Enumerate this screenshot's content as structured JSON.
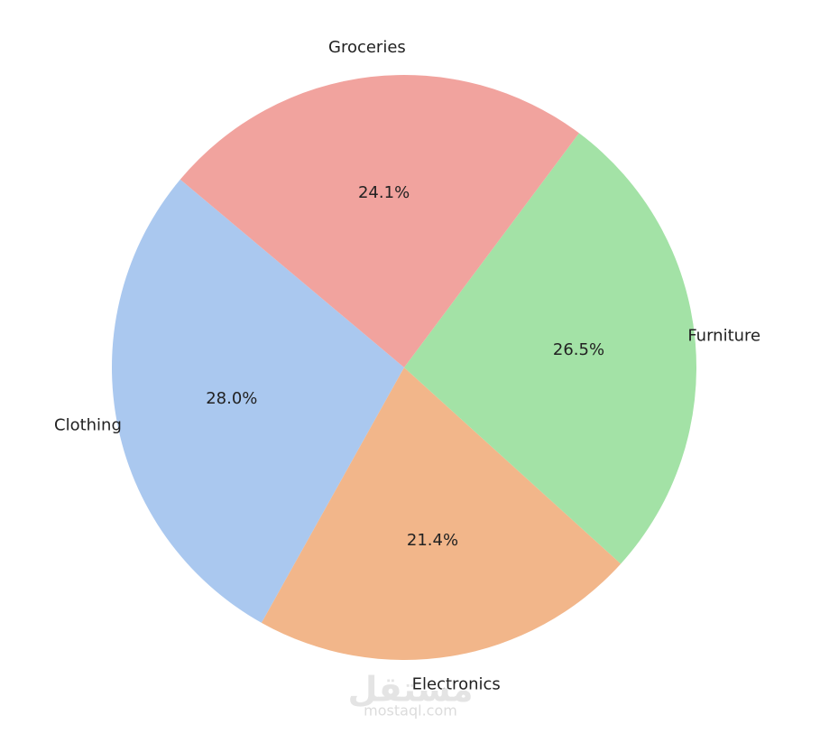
{
  "chart_data": {
    "type": "pie",
    "categories": [
      "Clothing",
      "Electronics",
      "Furniture",
      "Groceries"
    ],
    "values": [
      28.0,
      21.4,
      26.5,
      24.1
    ],
    "value_labels": [
      "28.0%",
      "21.4%",
      "26.5%",
      "24.1%"
    ],
    "colors": [
      "#aac8ef",
      "#f2b68a",
      "#a3e2a6",
      "#f1a39e"
    ],
    "startangle": 140,
    "counterclock": true,
    "watermark": [
      "مستقل",
      "mostaql.com"
    ]
  }
}
